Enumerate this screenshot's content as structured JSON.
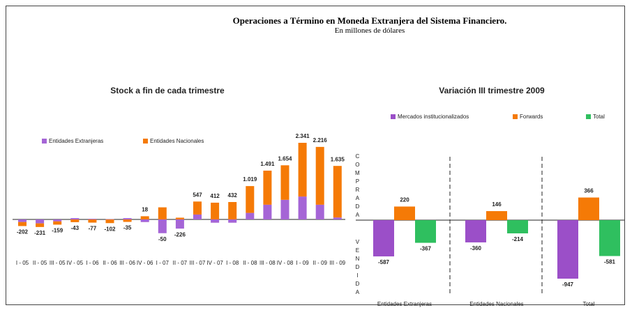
{
  "title": "Operaciones a Término en Moneda Extranjera del Sistema Financiero.",
  "subtitle": "En millones de dólares",
  "chart_data": [
    {
      "type": "stacked_bar",
      "title": "Stock a fin de cada trimestre",
      "categories": [
        "I - 05",
        "II - 05",
        "III - 05",
        "IV - 05",
        "I - 06",
        "II - 06",
        "III - 06",
        "IV - 06",
        "I - 07",
        "II - 07",
        "III - 07",
        "IV - 07",
        "I - 08",
        "II - 08",
        "III - 08",
        "IV - 08",
        "I - 09",
        "II - 09",
        "III - 09"
      ],
      "series": [
        {
          "name": "Entidades Extranjeras",
          "color": "#a565d6",
          "values": [
            -80,
            -120,
            -60,
            40,
            20,
            10,
            40,
            -80,
            -420,
            -280,
            150,
            -100,
            -100,
            200,
            450,
            600,
            700,
            450,
            60
          ]
        },
        {
          "name": "Entidades Nacionales",
          "color": "#f57a06",
          "values": [
            -122,
            -111,
            -99,
            -83,
            -97,
            -112,
            -75,
            98,
            370,
            54,
            397,
            512,
            532,
            819,
            1041,
            1054,
            1641,
            1766,
            1575
          ]
        }
      ],
      "totals": {
        "values": [
          -202,
          -231,
          -159,
          -43,
          -77,
          -102,
          -35,
          18,
          -50,
          -226,
          547,
          412,
          432,
          1019,
          1491,
          1654,
          2341,
          2216,
          1635
        ],
        "value_labels": [
          "-202",
          "-231",
          "-159",
          "-43",
          "-77",
          "-102",
          "-35",
          "18",
          "-50",
          "-226",
          "547",
          "412",
          "432",
          "1.019",
          "1.491",
          "1.654",
          "2.341",
          "2.216",
          "1.635"
        ]
      },
      "legend": "top-left"
    },
    {
      "type": "grouped_bar",
      "title": "Variación III trimestre 2009",
      "categories": [
        "Entidades Extranjeras",
        "Entidades Nacionales",
        "Total"
      ],
      "series": [
        {
          "name": "Mercados institucionalizados",
          "color": "#9b4fc8",
          "values": [
            -587,
            -360,
            -947
          ]
        },
        {
          "name": "Forwards",
          "color": "#f57a06",
          "values": [
            220,
            146,
            366
          ]
        },
        {
          "name": "Total",
          "color": "#2fbf5f",
          "values": [
            -367,
            -214,
            -581
          ]
        }
      ],
      "axis_labels": {
        "positive": "COMPRADA",
        "negative": "VENDIDA"
      },
      "legend": "top"
    }
  ]
}
